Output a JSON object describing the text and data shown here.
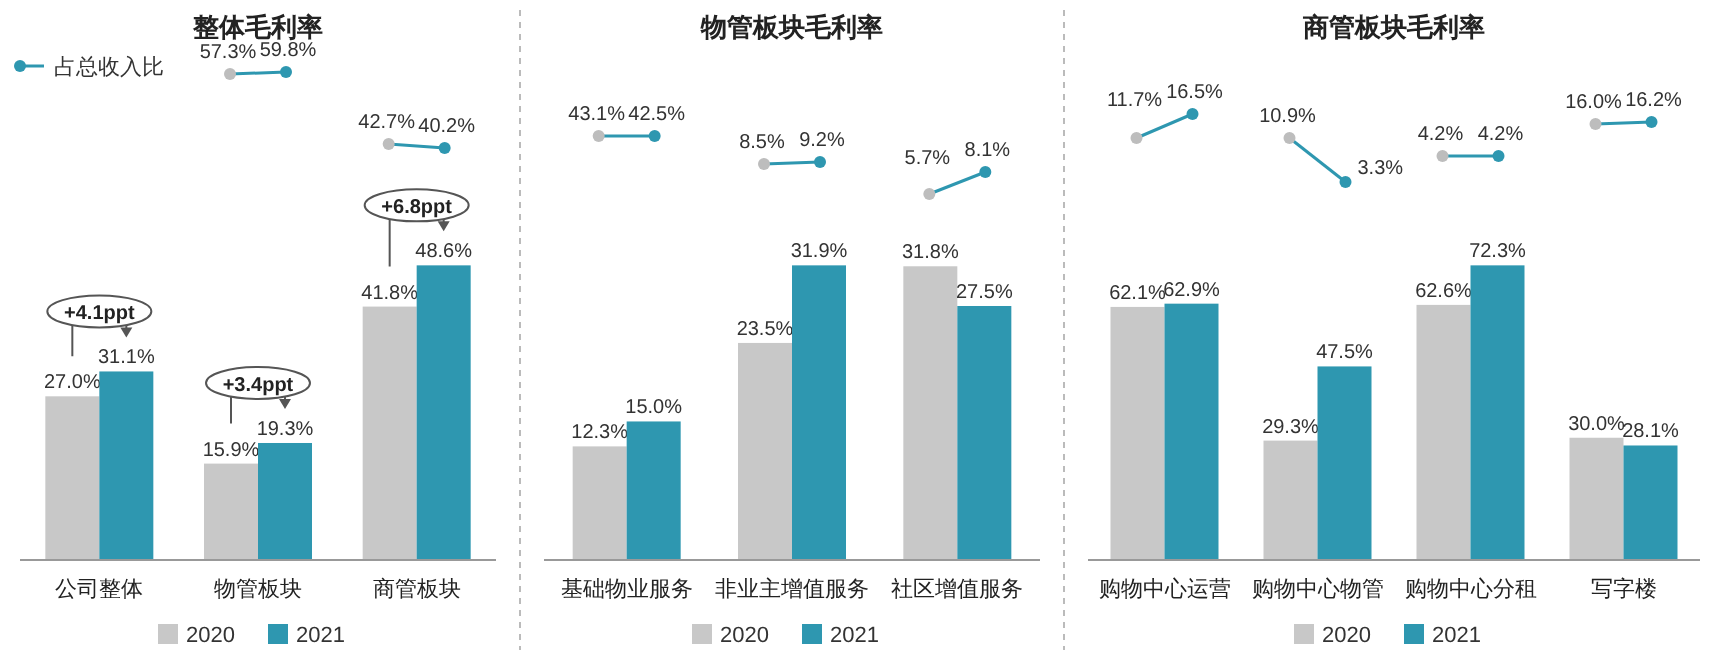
{
  "chart_data": [
    {
      "type": "bar",
      "title": "整体毛利率",
      "categories": [
        "公司整体",
        "物管板块",
        "商管板块"
      ],
      "legend": "bottom",
      "annotations": [
        "占总收入比",
        "57.3%",
        "59.8%",
        "42.7%",
        "40.2%",
        "+4.1ppt",
        "+3.4ppt",
        "+6.8ppt"
      ],
      "series": [
        {
          "name": "2020",
          "color": "#c8c8c8",
          "values": [
            27.0,
            15.9,
            41.8
          ],
          "value_labels": [
            "27.0%",
            "15.9%",
            "41.8%"
          ]
        },
        {
          "name": "2021",
          "color": "#2e97b0",
          "values": [
            31.1,
            19.3,
            48.6
          ],
          "value_labels": [
            "31.1%",
            "19.3%",
            "48.6%"
          ]
        }
      ]
    },
    {
      "type": "bar",
      "title": "物管板块毛利率",
      "categories": [
        "基础物业服务",
        "非业主增值服务",
        "社区增值服务"
      ],
      "legend": "bottom",
      "annotations": [
        "43.1%",
        "42.5%",
        "8.5%",
        "9.2%",
        "5.7%",
        "8.1%"
      ],
      "series": [
        {
          "name": "2020",
          "color": "#c8c8c8",
          "values": [
            12.3,
            23.5,
            31.8
          ],
          "value_labels": [
            "12.3%",
            "23.5%",
            "31.8%"
          ]
        },
        {
          "name": "2021",
          "color": "#2e97b0",
          "values": [
            15.0,
            31.9,
            27.5
          ],
          "value_labels": [
            "15.0%",
            "31.9%",
            "27.5%"
          ]
        }
      ]
    },
    {
      "type": "bar",
      "title": "商管板块毛利率",
      "categories": [
        "购物中心运营",
        "购物中心物管",
        "购物中心分租",
        "写字楼"
      ],
      "legend": "bottom",
      "annotations": [
        "11.7%",
        "16.5%",
        "10.9%",
        "3.3%",
        "4.2%",
        "4.2%",
        "16.0%",
        "16.2%"
      ],
      "series": [
        {
          "name": "2020",
          "color": "#c8c8c8",
          "values": [
            62.1,
            29.3,
            62.6,
            30.0
          ],
          "value_labels": [
            "62.1%",
            "29.3%",
            "62.6%",
            "30.0%"
          ]
        },
        {
          "name": "2021",
          "color": "#2e97b0",
          "values": [
            62.9,
            47.5,
            72.3,
            28.1
          ],
          "value_labels": [
            "62.9%",
            "47.5%",
            "72.3%",
            "28.1%"
          ]
        }
      ]
    }
  ]
}
